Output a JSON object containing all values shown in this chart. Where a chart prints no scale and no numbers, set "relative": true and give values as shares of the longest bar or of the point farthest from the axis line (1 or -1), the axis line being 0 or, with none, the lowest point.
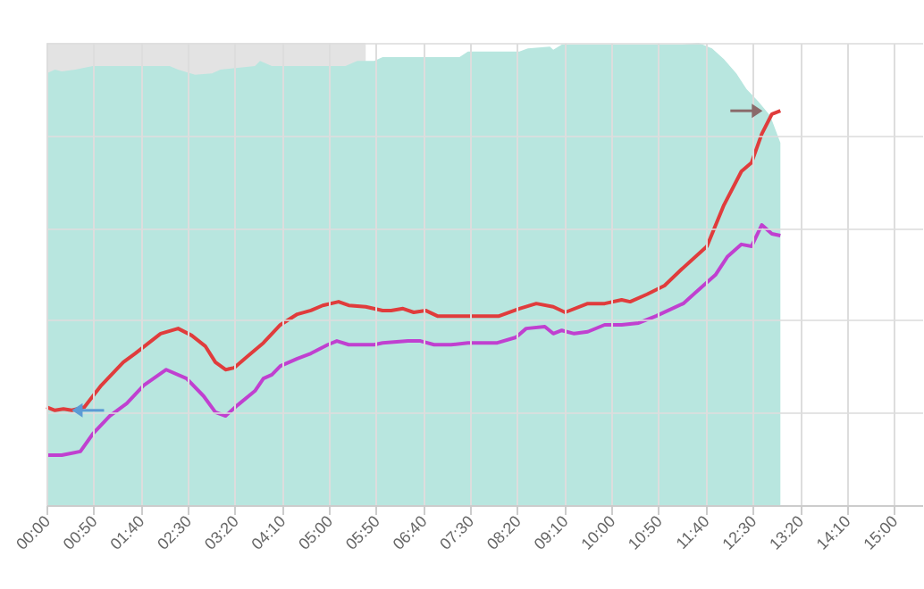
{
  "chart_data": {
    "type": "line",
    "relative": true,
    "grid": true,
    "xlim": [
      0,
      15.5
    ],
    "xticks": [
      {
        "value": 0,
        "label": "00:00"
      },
      {
        "value": 0.8333,
        "label": "00:50"
      },
      {
        "value": 1.6667,
        "label": "01:40"
      },
      {
        "value": 2.5,
        "label": "02:30"
      },
      {
        "value": 3.3333,
        "label": "03:20"
      },
      {
        "value": 4.1667,
        "label": "04:10"
      },
      {
        "value": 5,
        "label": "05:00"
      },
      {
        "value": 5.8333,
        "label": "05:50"
      },
      {
        "value": 6.6667,
        "label": "06:40"
      },
      {
        "value": 7.5,
        "label": "07:30"
      },
      {
        "value": 8.3333,
        "label": "08:20"
      },
      {
        "value": 9.1667,
        "label": "09:10"
      },
      {
        "value": 10,
        "label": "10:00"
      },
      {
        "value": 10.8333,
        "label": "10:50"
      },
      {
        "value": 11.6667,
        "label": "11:40"
      },
      {
        "value": 12.5,
        "label": "12:30"
      },
      {
        "value": 13.3333,
        "label": "13:20"
      },
      {
        "value": 14.1667,
        "label": "14:10"
      },
      {
        "value": 15,
        "label": "15:00"
      }
    ],
    "bands": [
      {
        "axis": "x",
        "from": 0,
        "to": 5.65,
        "color": "#c8c8c8"
      }
    ],
    "series": [
      {
        "type": "area",
        "color": "#b8e6df",
        "x": [
          0,
          0.15,
          0.27,
          0.51,
          0.82,
          2.18,
          2.33,
          2.63,
          2.93,
          3.08,
          3.69,
          3.78,
          3.99,
          5.29,
          5.5,
          5.8,
          5.95,
          7.31,
          7.46,
          8.37,
          8.52,
          8.91,
          8.97,
          9.12,
          11.24,
          11.54,
          11.78,
          11.99,
          12.21,
          12.39,
          12.6,
          12.81,
          12.99
        ],
        "values": [
          0.934,
          0.942,
          0.938,
          0.942,
          0.95,
          0.95,
          0.942,
          0.931,
          0.934,
          0.942,
          0.95,
          0.961,
          0.95,
          0.95,
          0.961,
          0.961,
          0.969,
          0.969,
          0.981,
          0.981,
          0.988,
          0.992,
          0.985,
          0.996,
          0.996,
          1,
          0.988,
          0.965,
          0.934,
          0.9,
          0.873,
          0.842,
          0.784
        ]
      },
      {
        "type": "line",
        "color": "#e03c3c",
        "x": [
          0,
          0.15,
          0.3,
          0.45,
          0.67,
          0.97,
          1.36,
          1.57,
          2.02,
          2.33,
          2.57,
          2.81,
          2.99,
          3.17,
          3.32,
          3.54,
          3.84,
          4.14,
          4.44,
          4.68,
          4.89,
          5.17,
          5.35,
          5.65,
          5.95,
          6.1,
          6.31,
          6.5,
          6.71,
          6.92,
          7.31,
          7.76,
          8.01,
          8.37,
          8.67,
          8.97,
          9.18,
          9.58,
          9.88,
          10.18,
          10.33,
          10.63,
          10.94,
          11.24,
          11.69,
          11.99,
          12.3,
          12.48,
          12.66,
          12.84,
          12.99
        ],
        "values": [
          0.212,
          0.205,
          0.208,
          0.205,
          0.212,
          0.259,
          0.309,
          0.328,
          0.371,
          0.382,
          0.367,
          0.344,
          0.309,
          0.293,
          0.297,
          0.32,
          0.351,
          0.39,
          0.413,
          0.421,
          0.432,
          0.44,
          0.432,
          0.429,
          0.421,
          0.421,
          0.425,
          0.417,
          0.421,
          0.409,
          0.409,
          0.409,
          0.409,
          0.425,
          0.436,
          0.429,
          0.417,
          0.436,
          0.436,
          0.444,
          0.44,
          0.456,
          0.475,
          0.51,
          0.56,
          0.649,
          0.722,
          0.741,
          0.803,
          0.846,
          0.853
        ]
      },
      {
        "type": "line",
        "color": "#c040d0",
        "x": [
          0,
          0.27,
          0.6,
          0.82,
          1.12,
          1.42,
          1.72,
          2.12,
          2.48,
          2.78,
          2.99,
          3.17,
          3.38,
          3.69,
          3.84,
          3.99,
          4.14,
          4.44,
          4.68,
          4.98,
          5.14,
          5.35,
          5.8,
          5.95,
          6.4,
          6.62,
          6.86,
          7.16,
          7.46,
          7.98,
          8.31,
          8.49,
          8.82,
          8.97,
          9.12,
          9.34,
          9.58,
          9.88,
          10.18,
          10.48,
          10.79,
          11.27,
          11.48,
          11.84,
          12.05,
          12.3,
          12.48,
          12.66,
          12.84,
          12.99
        ],
        "values": [
          0.108,
          0.108,
          0.116,
          0.154,
          0.193,
          0.22,
          0.259,
          0.293,
          0.274,
          0.236,
          0.201,
          0.193,
          0.216,
          0.247,
          0.274,
          0.282,
          0.301,
          0.317,
          0.328,
          0.347,
          0.355,
          0.347,
          0.347,
          0.351,
          0.355,
          0.355,
          0.347,
          0.347,
          0.351,
          0.351,
          0.363,
          0.382,
          0.386,
          0.371,
          0.378,
          0.371,
          0.375,
          0.39,
          0.39,
          0.394,
          0.409,
          0.436,
          0.459,
          0.498,
          0.537,
          0.564,
          0.56,
          0.606,
          0.587,
          0.583
        ]
      }
    ]
  }
}
